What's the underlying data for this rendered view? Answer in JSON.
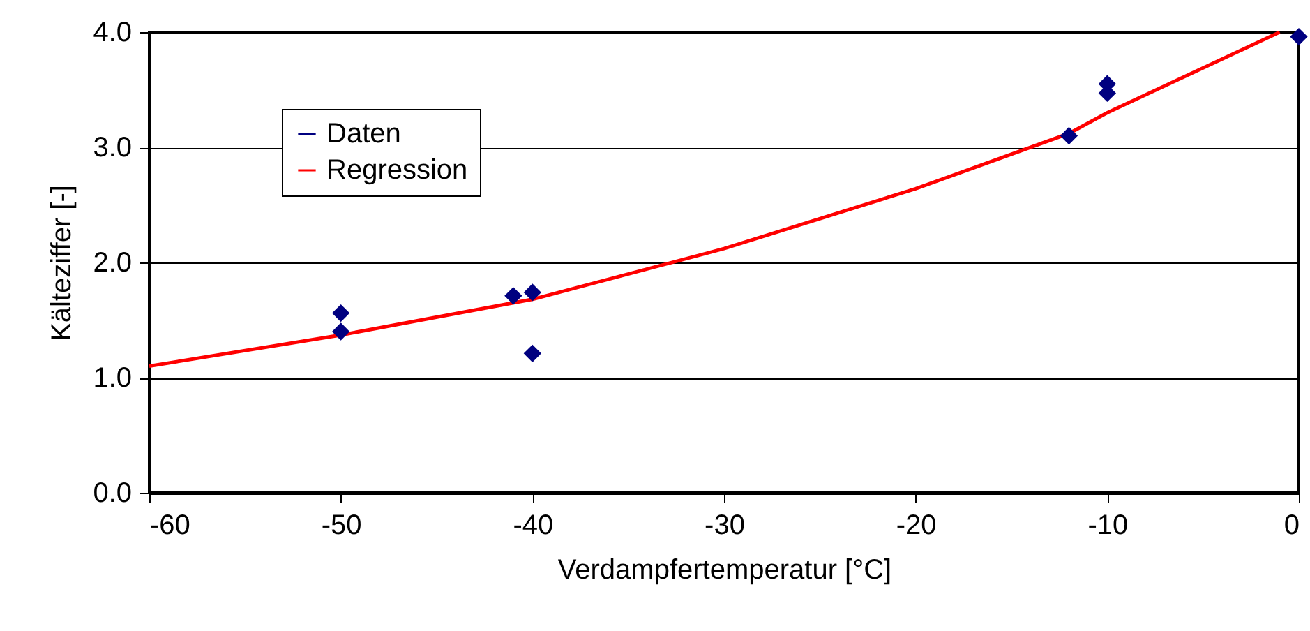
{
  "chart_data": {
    "type": "scatter",
    "xlabel": "Verdampfertemperatur [°C]",
    "ylabel": "Kälteziffer [-]",
    "xlim": [
      -60,
      0
    ],
    "xticks": [
      -60,
      -50,
      -40,
      -30,
      -20,
      -10,
      0
    ],
    "ylim": [
      0,
      4
    ],
    "yticks": [
      {
        "value": 0,
        "label": "0.0"
      },
      {
        "value": 1,
        "label": "1.0"
      },
      {
        "value": 2,
        "label": "2.0"
      },
      {
        "value": 3,
        "label": "3.0"
      },
      {
        "value": 4,
        "label": "4.0"
      }
    ],
    "grid": "y",
    "legend": "top left",
    "series": [
      {
        "name": "Daten",
        "color": "#000080",
        "marker": "diamond",
        "x": [
          -50,
          -50,
          -41,
          -40,
          -40,
          -12,
          -10,
          -10,
          0
        ],
        "values": [
          1.56,
          1.4,
          1.71,
          1.74,
          1.21,
          3.1,
          3.55,
          3.47,
          3.96
        ]
      },
      {
        "name": "Regression",
        "type": "line",
        "color": "#ff0000",
        "line_style": "solid",
        "x": [
          -60,
          -50,
          -40,
          -30,
          -20,
          -12,
          -10,
          -1
        ],
        "values": [
          1.1,
          1.37,
          1.68,
          2.12,
          2.64,
          3.12,
          3.3,
          4.0
        ]
      }
    ]
  }
}
